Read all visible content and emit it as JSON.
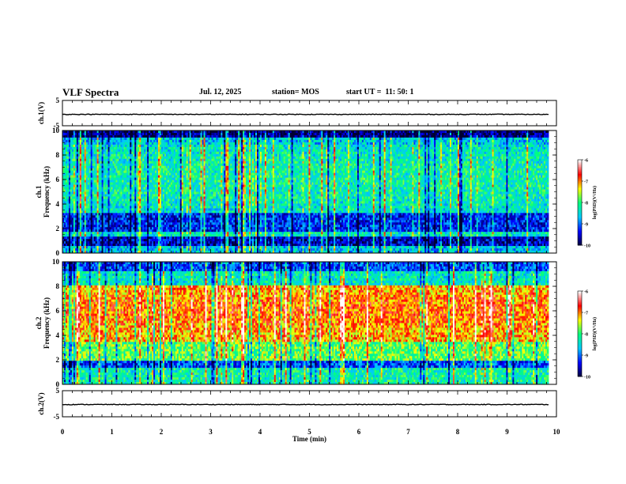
{
  "header": {
    "title": "VLF Spectra",
    "date": "Jul. 12, 2025",
    "station": "station= MOS",
    "start": "start UT =  11: 50: 1"
  },
  "chart_data": [
    {
      "type": "line",
      "panel": "ch1-waveform",
      "ylabel": "ch.1(V)",
      "ylim": [
        -5,
        5
      ],
      "yticks": [
        5,
        -5
      ],
      "series": [
        {
          "values_approx": -0.5
        }
      ]
    },
    {
      "type": "heatmap",
      "panel": "ch1-spectrogram",
      "ylabel": "ch.1 Frequency (kHz)",
      "ylim": [
        0,
        10
      ],
      "yticks": [
        0,
        2,
        4,
        6,
        8,
        10
      ],
      "colorbar": {
        "label": "log(PSD)(V²/Hz)",
        "range": [
          -10,
          -6
        ],
        "ticks": [
          -6,
          -7,
          -8,
          -9,
          -10
        ]
      },
      "colormap": [
        "#000033",
        "#0000ff",
        "#00c8ff",
        "#00ff80",
        "#ffff00",
        "#ff0000",
        "#ffffff"
      ]
    },
    {
      "type": "heatmap",
      "panel": "ch2-spectrogram",
      "ylabel": "ch.2 Frequency (kHz)",
      "ylim": [
        0,
        10
      ],
      "yticks": [
        0,
        2,
        4,
        6,
        8,
        10
      ],
      "colorbar": {
        "label": "log(PSD)(V²/Hz)",
        "range": [
          -10,
          -6
        ],
        "ticks": [
          -6,
          -7,
          -8,
          -9,
          -10
        ]
      }
    },
    {
      "type": "line",
      "panel": "ch2-waveform",
      "ylabel": "ch.2(V)",
      "ylim": [
        -5,
        5
      ],
      "yticks": [
        5,
        -5
      ],
      "series": [
        {
          "values_approx": -0.3
        }
      ]
    }
  ],
  "xaxis": {
    "label": "Time (min)",
    "range": [
      0,
      10
    ],
    "ticks": [
      "0",
      "1",
      "2",
      "3",
      "4",
      "5",
      "6",
      "7",
      "8",
      "9",
      "10"
    ]
  }
}
